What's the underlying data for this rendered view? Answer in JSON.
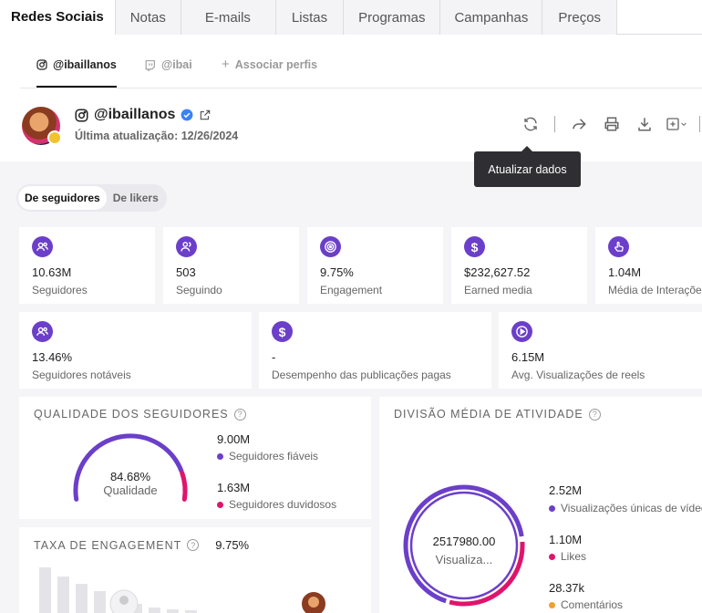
{
  "top_tabs": [
    "Redes Sociais",
    "Notas",
    "E-mails",
    "Listas",
    "Programas",
    "Campanhas",
    "Preços"
  ],
  "profile_tabs": {
    "instagram": "@ibaillanos",
    "twitch": "@ibai",
    "add": "Associar perfis"
  },
  "profile": {
    "handle": "@ibaillanos",
    "updated": "Última atualização: 12/26/2024"
  },
  "tooltip": "Atualizar dados",
  "toggle": [
    "De seguidores",
    "De likers"
  ],
  "stats_row1": [
    {
      "value": "10.63M",
      "label": "Seguidores",
      "icon": "users-icon"
    },
    {
      "value": "503",
      "label": "Seguindo",
      "icon": "user-follow-icon"
    },
    {
      "value": "9.75%",
      "label": "Engagement",
      "icon": "target-icon"
    },
    {
      "value": "$232,627.52",
      "label": "Earned media",
      "icon": "dollar-icon"
    },
    {
      "value": "1.04M",
      "label": "Média de Interações",
      "icon": "hand-icon"
    }
  ],
  "stats_row2": [
    {
      "value": "13.46%",
      "label": "Seguidores notáveis",
      "icon": "users-icon"
    },
    {
      "value": "-",
      "label": "Desempenho das publicações pagas",
      "icon": "dollar-icon"
    },
    {
      "value": "6.15M",
      "label": "Avg. Visualizações de reels",
      "icon": "play-icon"
    }
  ],
  "quality": {
    "title": "QUALIDADE DOS SEGUIDORES",
    "percent": "84.68%",
    "center_label": "Qualidade",
    "fraction": 0.8468,
    "items": [
      {
        "value": "9.00M",
        "label": "Seguidores fiáveis",
        "color": "#6b3fc9"
      },
      {
        "value": "1.63M",
        "label": "Seguidores duvidosos",
        "color": "#e0146c"
      }
    ]
  },
  "activity": {
    "title": "DIVISÃO MÉDIA DE ATIVIDADE",
    "center_value": "2517980.00",
    "center_label": "Visualiza...",
    "items": [
      {
        "value": "2.52M",
        "label": "Visualizações únicas de vídeo",
        "color": "#6b3fc9"
      },
      {
        "value": "1.10M",
        "label": "Likes",
        "color": "#e0146c"
      },
      {
        "value": "28.37k",
        "label": "Comentários",
        "color": "#f0a030"
      }
    ]
  },
  "engagement": {
    "title": "TAXA DE ENGAGEMENT",
    "value": "9.75%"
  },
  "colors": {
    "accent": "#6b3fc9",
    "pink": "#e0146c",
    "orange": "#f0a030"
  }
}
